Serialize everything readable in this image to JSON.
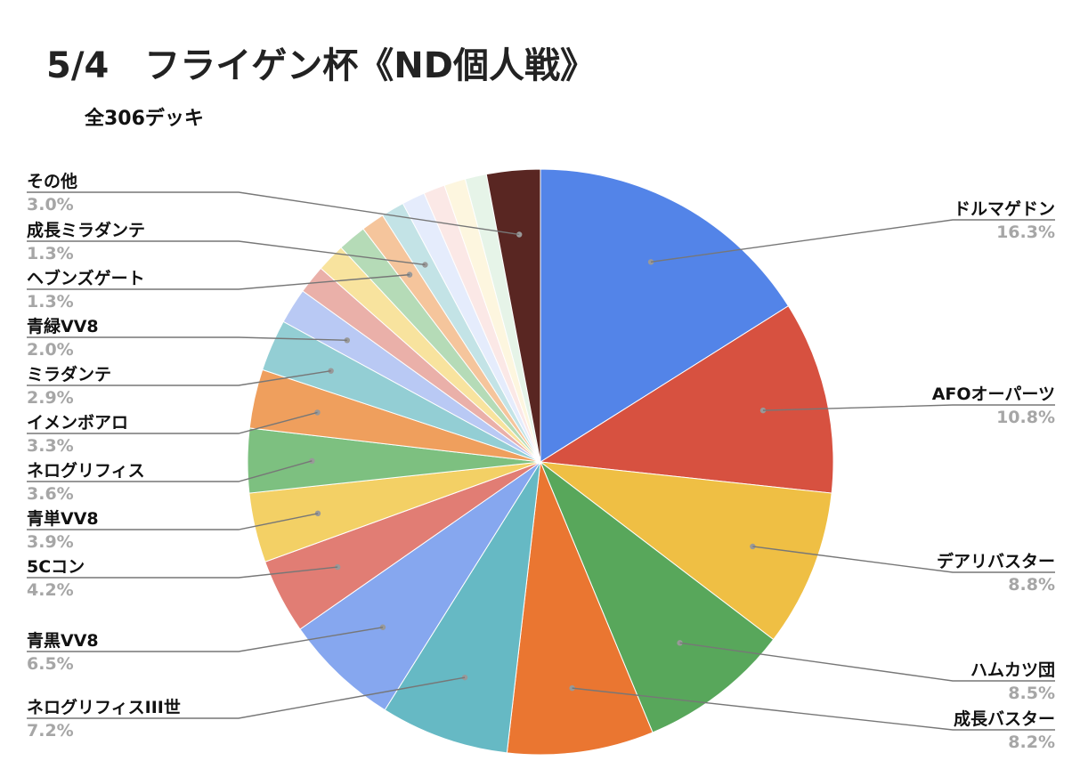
{
  "chart_data": {
    "type": "pie",
    "title": "5/4　フライゲン杯《ND個人戦》",
    "subtitle": "全306デッキ",
    "slices": [
      {
        "name": "ドルマゲドン",
        "pct_label": "16.3%",
        "value": 16.3,
        "color": "#5384e8"
      },
      {
        "name": "AFOオーパーツ",
        "pct_label": "10.8%",
        "value": 10.8,
        "color": "#d75140"
      },
      {
        "name": "デアリバスター",
        "pct_label": "8.8%",
        "value": 8.8,
        "color": "#efbf44"
      },
      {
        "name": "ハムカツ団",
        "pct_label": "8.5%",
        "value": 8.5,
        "color": "#58a75b"
      },
      {
        "name": "成長バスター",
        "pct_label": "8.2%",
        "value": 8.2,
        "color": "#ea7631"
      },
      {
        "name": "ネログリフィスIII世",
        "pct_label": "7.2%",
        "value": 7.2,
        "color": "#66b9c4"
      },
      {
        "name": "青黒VV8",
        "pct_label": "6.5%",
        "value": 6.5,
        "color": "#86a7ef"
      },
      {
        "name": "5Cコン",
        "pct_label": "4.2%",
        "value": 4.2,
        "color": "#e17d74"
      },
      {
        "name": "青単VV8",
        "pct_label": "3.9%",
        "value": 3.9,
        "color": "#f3d065"
      },
      {
        "name": "ネログリフィス",
        "pct_label": "3.6%",
        "value": 3.6,
        "color": "#7dc080"
      },
      {
        "name": "イメンボアロ",
        "pct_label": "3.3%",
        "value": 3.3,
        "color": "#ef9f5d"
      },
      {
        "name": "ミラダンテ",
        "pct_label": "2.9%",
        "value": 2.9,
        "color": "#93ced4"
      },
      {
        "name": "青緑VV8",
        "pct_label": "2.0%",
        "value": 2.0,
        "color": "#b9c9f4"
      },
      {
        "name": "",
        "pct_label": "",
        "value": 1.6,
        "color": "#eab0a9"
      },
      {
        "name": "",
        "pct_label": "",
        "value": 1.6,
        "color": "#f8e39e"
      },
      {
        "name": "",
        "pct_label": "",
        "value": 1.6,
        "color": "#b5dbb7"
      },
      {
        "name": "ヘブンズゲート",
        "pct_label": "1.3%",
        "value": 1.3,
        "color": "#f5c59c"
      },
      {
        "name": "成長ミラダンテ",
        "pct_label": "1.3%",
        "value": 1.3,
        "color": "#c3e3e6"
      },
      {
        "name": "",
        "pct_label": "",
        "value": 1.3,
        "color": "#e5ecfc"
      },
      {
        "name": "",
        "pct_label": "",
        "value": 1.2,
        "color": "#fbe8e6"
      },
      {
        "name": "",
        "pct_label": "",
        "value": 1.2,
        "color": "#fdf6df"
      },
      {
        "name": "",
        "pct_label": "",
        "value": 1.2,
        "color": "#e6f4e8"
      },
      {
        "name": "その他",
        "pct_label": "3.0%",
        "value": 3.0,
        "color": "#592622"
      }
    ]
  }
}
